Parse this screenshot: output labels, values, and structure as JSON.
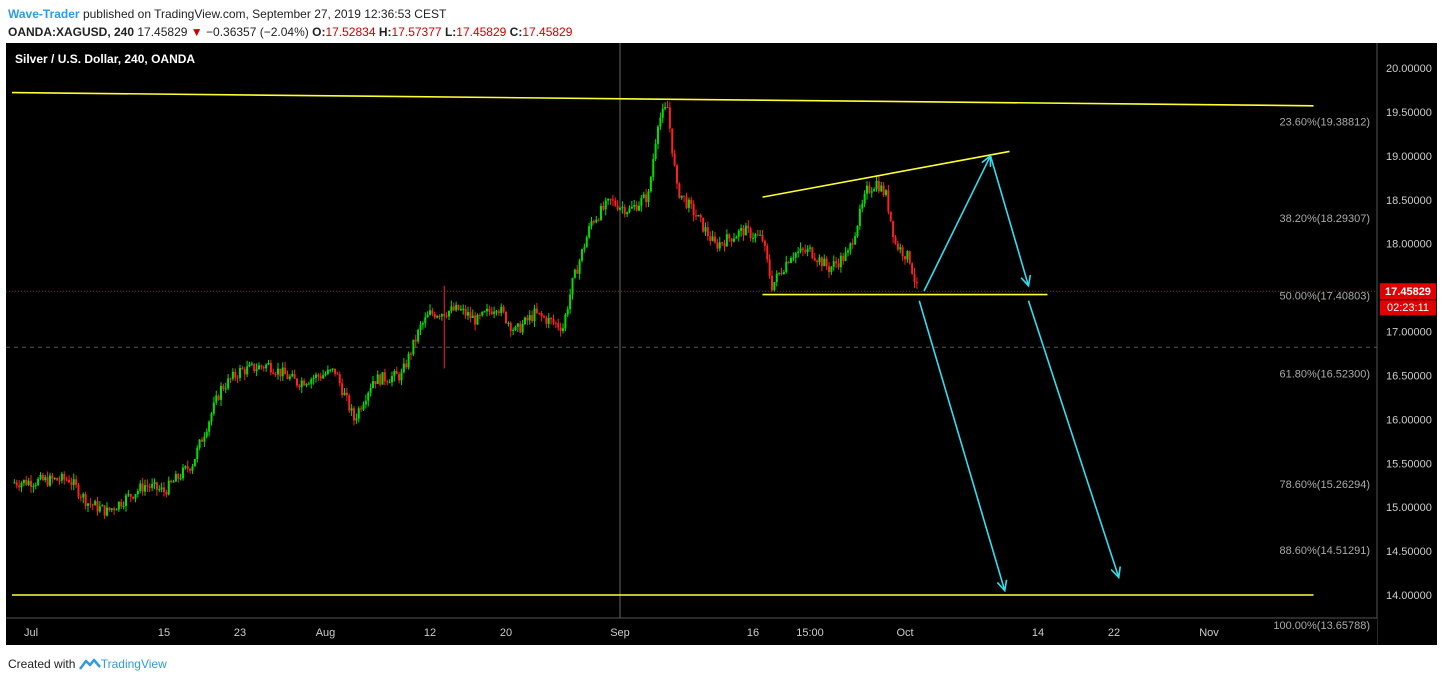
{
  "header": {
    "author": "Wave-Trader",
    "published": "published on TradingView.com, September 27, 2019 12:36:53 CEST",
    "symbol": "OANDA:XAGUSD, 240",
    "last": "17.45829",
    "change": "−0.36357 (−2.04%)",
    "o_label": "O:",
    "o_value": "17.52834",
    "h_label": "H:",
    "h_value": "17.57377",
    "l_label": "L:",
    "l_value": "17.45829",
    "c_label": "C:",
    "c_value": "17.45829"
  },
  "footer": {
    "created_with": "Created with",
    "brand": "TradingView"
  },
  "colors": {
    "background": "#000000",
    "up": "#00e000",
    "down": "#ff2020",
    "trendline": "#ffff33",
    "arrow": "#33ddee",
    "price_tag": "#e00000",
    "axis_text": "#bbbbbb"
  },
  "chart_data": {
    "type": "candlestick",
    "title": "Silver / U.S. Dollar, 240, OANDA",
    "ylim": [
      13.85,
      20.3
    ],
    "y_ticks": [
      "20.00000",
      "19.50000",
      "19.00000",
      "18.50000",
      "18.00000",
      "17.50000",
      "17.00000",
      "16.50000",
      "16.00000",
      "15.50000",
      "15.00000",
      "14.50000",
      "14.00000"
    ],
    "y_tick_values": [
      20.0,
      19.5,
      19.0,
      18.5,
      18.0,
      17.5,
      17.0,
      16.5,
      16.0,
      15.5,
      15.0,
      14.5,
      14.0
    ],
    "x_ticks": [
      "Jul",
      "15",
      "23",
      "Aug",
      "12",
      "20",
      "Sep",
      "16",
      "15:00",
      "Oct",
      "14",
      "22",
      "Nov"
    ],
    "x_tick_days": [
      2,
      16,
      24,
      33,
      44,
      52,
      64,
      78,
      84,
      94,
      108,
      116,
      126
    ],
    "fib_levels": [
      {
        "label": "23.60%(19.38812)",
        "value": 19.38812
      },
      {
        "label": "38.20%(18.29307)",
        "value": 18.29307
      },
      {
        "label": "50.00%(17.40803)",
        "value": 17.40803
      },
      {
        "label": "61.80%(16.52300)",
        "value": 16.523
      },
      {
        "label": "78.60%(15.26294)",
        "value": 15.26294
      },
      {
        "label": "88.60%(14.51291)",
        "value": 14.51291
      },
      {
        "label": "100.00%(13.65788)",
        "value": 13.65788
      }
    ],
    "last_price": {
      "label": "17.45829",
      "value": 17.45829,
      "countdown": "02:23:11"
    },
    "anchors": [
      {
        "d": 0,
        "p": 15.28
      },
      {
        "d": 6,
        "p": 15.32
      },
      {
        "d": 8,
        "p": 15.05
      },
      {
        "d": 10,
        "p": 14.95
      },
      {
        "d": 14,
        "p": 15.25
      },
      {
        "d": 16,
        "p": 15.18
      },
      {
        "d": 19,
        "p": 15.5
      },
      {
        "d": 22,
        "p": 16.35
      },
      {
        "d": 24,
        "p": 16.55
      },
      {
        "d": 27,
        "p": 16.62
      },
      {
        "d": 30,
        "p": 16.42
      },
      {
        "d": 34,
        "p": 16.55
      },
      {
        "d": 36,
        "p": 16.0
      },
      {
        "d": 38,
        "p": 16.45
      },
      {
        "d": 41,
        "p": 16.5
      },
      {
        "d": 43,
        "p": 17.05
      },
      {
        "d": 44,
        "p": 17.2
      },
      {
        "d": 47,
        "p": 17.25
      },
      {
        "d": 49,
        "p": 17.12
      },
      {
        "d": 51,
        "p": 17.3
      },
      {
        "d": 53,
        "p": 17.0
      },
      {
        "d": 55,
        "p": 17.2
      },
      {
        "d": 58,
        "p": 17.05
      },
      {
        "d": 59,
        "p": 17.55
      },
      {
        "d": 61,
        "p": 18.25
      },
      {
        "d": 63,
        "p": 18.48
      },
      {
        "d": 65,
        "p": 18.38
      },
      {
        "d": 67,
        "p": 18.55
      },
      {
        "d": 68,
        "p": 19.4
      },
      {
        "d": 69,
        "p": 19.55
      },
      {
        "d": 70,
        "p": 18.62
      },
      {
        "d": 72,
        "p": 18.32
      },
      {
        "d": 74,
        "p": 17.98
      },
      {
        "d": 77,
        "p": 18.15
      },
      {
        "d": 79,
        "p": 18.05
      },
      {
        "d": 80,
        "p": 17.52
      },
      {
        "d": 82,
        "p": 17.88
      },
      {
        "d": 84,
        "p": 17.92
      },
      {
        "d": 86,
        "p": 17.72
      },
      {
        "d": 88,
        "p": 17.88
      },
      {
        "d": 90,
        "p": 18.6
      },
      {
        "d": 91,
        "p": 18.7
      },
      {
        "d": 92,
        "p": 18.55
      },
      {
        "d": 93,
        "p": 18.0
      },
      {
        "d": 94.5,
        "p": 17.82
      },
      {
        "d": 95.3,
        "p": 17.46
      }
    ],
    "trendlines": [
      {
        "name": "upper-horizontal",
        "d1": 0,
        "p1": 19.72,
        "d2": 137,
        "p2": 19.57
      },
      {
        "name": "lower-horizontal",
        "d1": 0,
        "p1": 14.0,
        "d2": 137,
        "p2": 14.0
      },
      {
        "name": "wedge-upper",
        "d1": 79,
        "p1": 18.53,
        "d2": 105,
        "p2": 19.05
      },
      {
        "name": "wedge-base",
        "d1": 79,
        "p1": 17.42,
        "d2": 109,
        "p2": 17.42
      }
    ],
    "arrows": [
      {
        "d1": 96,
        "p1": 17.46,
        "d2": 103,
        "p2": 19.0
      },
      {
        "d1": 103,
        "p1": 19.0,
        "d2": 107,
        "p2": 17.52
      },
      {
        "d1": 95.5,
        "p1": 17.35,
        "d2": 104.5,
        "p2": 14.05
      },
      {
        "d1": 107,
        "p1": 17.35,
        "d2": 116.5,
        "p2": 14.2
      }
    ]
  }
}
